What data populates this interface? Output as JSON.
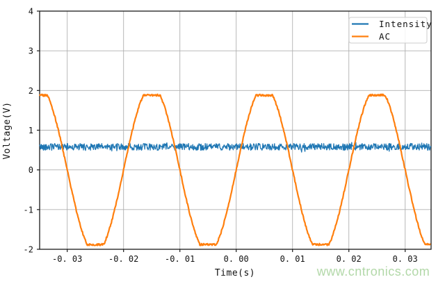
{
  "figure": {
    "background": "#ffffff",
    "watermark": {
      "text": "www.cntronics.com",
      "color": "#b2d8a8"
    }
  },
  "chart_data": {
    "type": "line",
    "title": "",
    "xlabel": "Time(s)",
    "ylabel": "Voltage(V)",
    "xlim": [
      -0.0349,
      0.0346
    ],
    "ylim": [
      -2,
      4
    ],
    "grid": true,
    "colors": {
      "grid": "#b0b0b0",
      "spine": "#1a1a1a",
      "background": "#ffffff"
    },
    "xticks": {
      "values": [
        -0.03,
        -0.02,
        -0.01,
        0.0,
        0.01,
        0.02,
        0.03
      ],
      "labels": [
        "-0. 03",
        "-0. 02",
        "-0. 01",
        "0. 00",
        "0. 01",
        "0. 02",
        "0. 03"
      ]
    },
    "yticks": {
      "values": [
        4,
        3,
        2,
        1,
        0,
        -1,
        -2
      ],
      "labels": [
        "4",
        "3",
        "2",
        "1",
        "0",
        "-1",
        "-2"
      ]
    },
    "legend": {
      "position": "upper right",
      "entries": [
        "Intensity",
        "AC"
      ]
    },
    "series": [
      {
        "name": "Intensity",
        "color": "#1f77b4",
        "waveform": "constant_noisy",
        "mean_v": 0.58,
        "noise_v": 0.085,
        "spike_chance": 0.05,
        "spike_v": 0.07
      },
      {
        "name": "AC",
        "color": "#ff7f0e",
        "waveform": "clipped_sine",
        "frequency_hz": 50,
        "period_s": 0.02,
        "drive_amplitude_v": 2.1,
        "clip_v": 1.88,
        "peak_v": 1.9,
        "noise_v": 0.025,
        "zero_crossing_rising_s": 0.0,
        "peaks_at_s": [
          -0.035,
          -0.015,
          0.005,
          0.025
        ]
      }
    ]
  }
}
